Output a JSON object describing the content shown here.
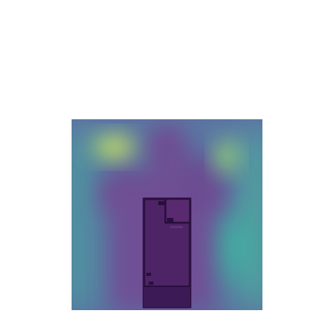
{
  "heatmap": {
    "colormap": [
      "#3b1f5c",
      "#6a3f86",
      "#5d6fa3",
      "#46a6a0",
      "#7fd27b",
      "#e8ea52"
    ],
    "background": "#6e4d93",
    "hotspots": [
      {
        "label": "top-left-peak",
        "intensity": 1.0
      },
      {
        "label": "top-right-peak",
        "intensity": 0.75
      },
      {
        "label": "left-band",
        "intensity": 0.45
      },
      {
        "label": "right-band",
        "intensity": 0.55
      }
    ],
    "floorplan": {
      "stroke": "#2a0f3e",
      "fill": "#4b1f62"
    }
  }
}
